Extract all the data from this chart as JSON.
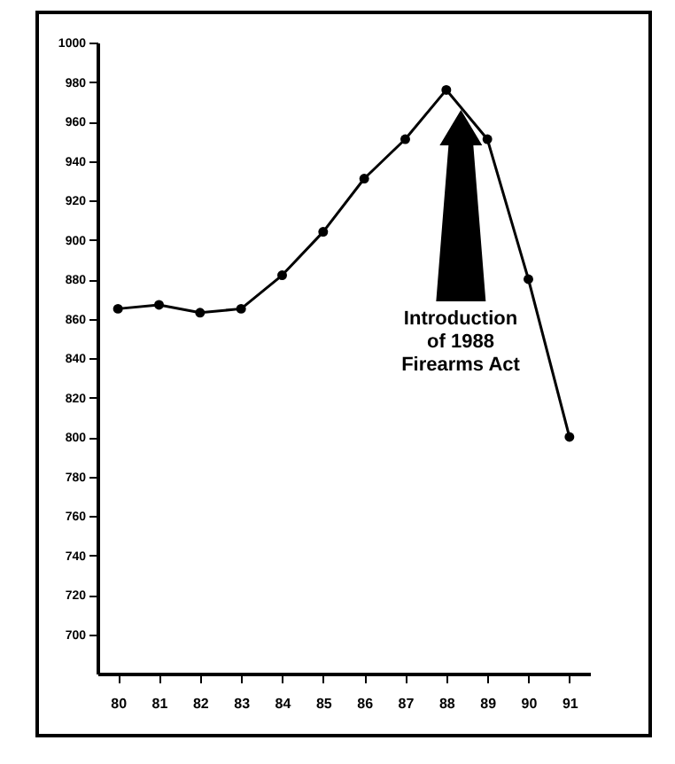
{
  "chart_data": {
    "type": "line",
    "categories": [
      "80",
      "81",
      "82",
      "83",
      "84",
      "85",
      "86",
      "87",
      "88",
      "89",
      "90",
      "91"
    ],
    "values": [
      865,
      867,
      863,
      865,
      882,
      904,
      931,
      951,
      976,
      951,
      880,
      800
    ],
    "color": "#000000",
    "ylim": [
      680,
      1000
    ],
    "yticks": [
      700,
      720,
      740,
      760,
      780,
      800,
      820,
      840,
      860,
      880,
      900,
      920,
      940,
      960,
      980,
      1000
    ],
    "grid": false,
    "marker": "circle",
    "line_style": "solid",
    "annotations": [
      "Introduction of 1988 Firearms Act"
    ]
  }
}
